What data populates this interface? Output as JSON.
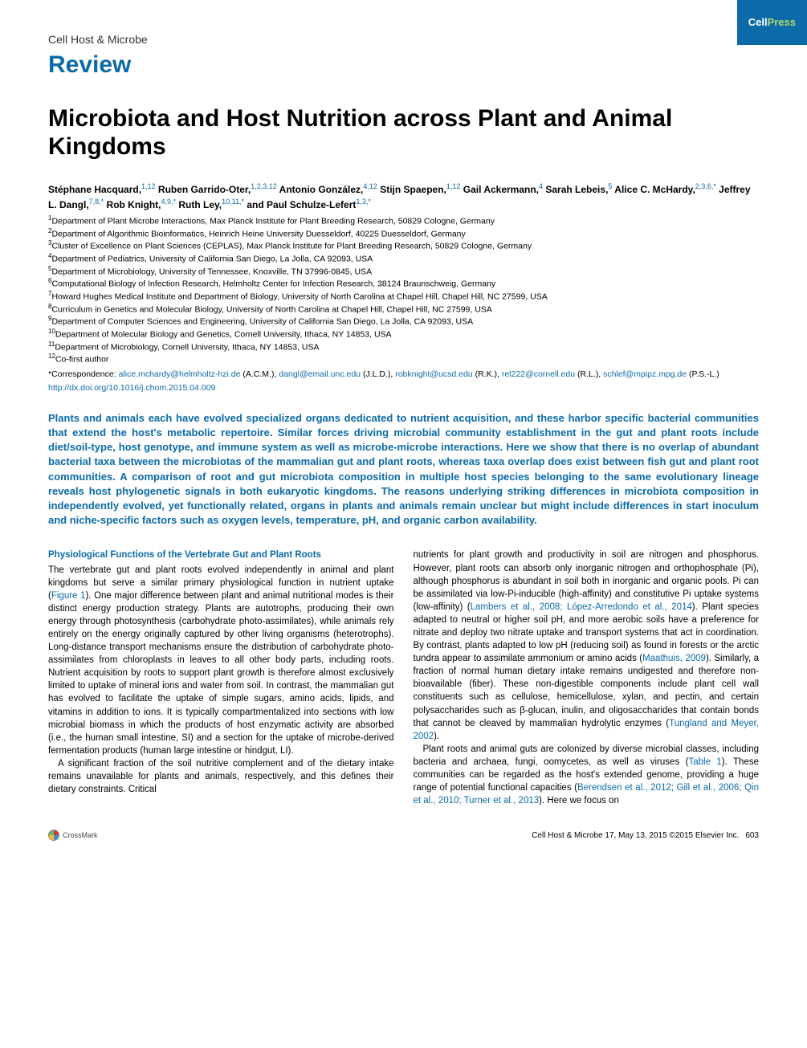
{
  "journal": {
    "name": "Cell Host & Microbe",
    "article_type": "Review",
    "publisher_badge_cell": "Cell",
    "publisher_badge_press": "Press"
  },
  "title": "Microbiota and Host Nutrition across Plant and Animal Kingdoms",
  "authors_html": "Stéphane Hacquard,<sup>1,12</sup> Ruben Garrido-Oter,<sup>1,2,3,12</sup> Antonio González,<sup>4,12</sup> Stijn Spaepen,<sup>1,12</sup> Gail Ackermann,<sup>4</sup> Sarah Lebeis,<sup>5</sup> Alice C. McHardy,<sup>2,3,6,*</sup> Jeffrey L. Dangl,<sup>7,8,*</sup> Rob Knight,<sup>4,9,*</sup> Ruth Ley,<sup>10,11,*</sup> and Paul Schulze-Lefert<sup>1,3,*</sup>",
  "affiliations": [
    "<sup>1</sup>Department of Plant Microbe Interactions, Max Planck Institute for Plant Breeding Research, 50829 Cologne, Germany",
    "<sup>2</sup>Department of Algorithmic Bioinformatics, Heinrich Heine University Duesseldorf, 40225 Duesseldorf, Germany",
    "<sup>3</sup>Cluster of Excellence on Plant Sciences (CEPLAS), Max Planck Institute for Plant Breeding Research, 50829 Cologne, Germany",
    "<sup>4</sup>Department of Pediatrics, University of California San Diego, La Jolla, CA 92093, USA",
    "<sup>5</sup>Department of Microbiology, University of Tennessee, Knoxville, TN 37996-0845, USA",
    "<sup>6</sup>Computational Biology of Infection Research, Helmholtz Center for Infection Research, 38124 Braunschweig, Germany",
    "<sup>7</sup>Howard Hughes Medical Institute and Department of Biology, University of North Carolina at Chapel Hill, Chapel Hill, NC 27599, USA",
    "<sup>8</sup>Curriculum in Genetics and Molecular Biology, University of North Carolina at Chapel Hill, Chapel Hill, NC 27599, USA",
    "<sup>9</sup>Department of Computer Sciences and Engineering, University of California San Diego, La Jolla, CA 92093, USA",
    "<sup>10</sup>Department of Molecular Biology and Genetics, Cornell University, Ithaca, NY 14853, USA",
    "<sup>11</sup>Department of Microbiology, Cornell University, Ithaca, NY 14853, USA",
    "<sup>12</sup>Co-first author"
  ],
  "correspondence_label": "*Correspondence: ",
  "correspondence_emails": [
    {
      "email": "alice.mchardy@helmholtz-hzi.de",
      "who": " (A.C.M.), "
    },
    {
      "email": "dangl@email.unc.edu",
      "who": " (J.L.D.), "
    },
    {
      "email": "robknight@ucsd.edu",
      "who": " (R.K.), "
    },
    {
      "email": "rel222@cornell.edu",
      "who": " (R.L.), "
    },
    {
      "email": "schlef@mpipz.mpg.de",
      "who": " (P.S.-L.)"
    }
  ],
  "doi": "http://dx.doi.org/10.1016/j.chom.2015.04.009",
  "abstract": "Plants and animals each have evolved specialized organs dedicated to nutrient acquisition, and these harbor specific bacterial communities that extend the host's metabolic repertoire. Similar forces driving microbial community establishment in the gut and plant roots include diet/soil-type, host genotype, and immune system as well as microbe-microbe interactions. Here we show that there is no overlap of abundant bacterial taxa between the microbiotas of the mammalian gut and plant roots, whereas taxa overlap does exist between fish gut and plant root communities. A comparison of root and gut microbiota composition in multiple host species belonging to the same evolutionary lineage reveals host phylogenetic signals in both eukaryotic kingdoms. The reasons underlying striking differences in microbiota composition in independently evolved, yet functionally related, organs in plants and animals remain unclear but might include differences in start inoculum and niche-specific factors such as oxygen levels, temperature, pH, and organic carbon availability.",
  "section_heading": "Physiological Functions of the Vertebrate Gut and Plant Roots",
  "col1_p1": "The vertebrate gut and plant roots evolved independently in animal and plant kingdoms but serve a similar primary physiological function in nutrient uptake (<span class='link'>Figure 1</span>). One major difference between plant and animal nutritional modes is their distinct energy production strategy. Plants are autotrophs, producing their own energy through photosynthesis (carbohydrate photo-assimilates), while animals rely entirely on the energy originally captured by other living organisms (heterotrophs). Long-distance transport mechanisms ensure the distribution of carbohydrate photo-assimilates from chloroplasts in leaves to all other body parts, including roots. Nutrient acquisition by roots to support plant growth is therefore almost exclusively limited to uptake of mineral ions and water from soil. In contrast, the mammalian gut has evolved to facilitate the uptake of simple sugars, amino acids, lipids, and vitamins in addition to ions. It is typically compartmentalized into sections with low microbial biomass in which the products of host enzymatic activity are absorbed (i.e., the human small intestine, SI) and a section for the uptake of microbe-derived fermentation products (human large intestine or hindgut, LI).",
  "col1_p2": "A significant fraction of the soil nutritive complement and of the dietary intake remains unavailable for plants and animals, respectively, and this defines their dietary constraints. Critical",
  "col2_p1": "nutrients for plant growth and productivity in soil are nitrogen and phosphorus. However, plant roots can absorb only inorganic nitrogen and orthophosphate (Pi), although phosphorus is abundant in soil both in inorganic and organic pools. Pi can be assimilated via low-Pi-inducible (high-affinity) and constitutive Pi uptake systems (low-affinity) (<span class='link'>Lambers et al., 2008; López-Arredondo et al., 2014</span>). Plant species adapted to neutral or higher soil pH, and more aerobic soils have a preference for nitrate and deploy two nitrate uptake and transport systems that act in coordination. By contrast, plants adapted to low pH (reducing soil) as found in forests or the arctic tundra appear to assimilate ammonium or amino acids (<span class='link'>Maathuis, 2009</span>). Similarly, a fraction of normal human dietary intake remains undigested and therefore non-bioavailable (fiber). These non-digestible components include plant cell wall constituents such as cellulose, hemicellulose, xylan, and pectin, and certain polysaccharides such as β-glucan, inulin, and oligosaccharides that contain bonds that cannot be cleaved by mammalian hydrolytic enzymes (<span class='link'>Tungland and Meyer, 2002</span>).",
  "col2_p2": "Plant roots and animal guts are colonized by diverse microbial classes, including bacteria and archaea, fungi, oomycetes, as well as viruses (<span class='link'>Table 1</span>). These communities can be regarded as the host's extended genome, providing a huge range of potential functional capacities (<span class='link'>Berendsen et al., 2012; Gill et al., 2006; Qin et al., 2010; Turner et al., 2013</span>). Here we focus on",
  "footer": {
    "crossmark": "CrossMark",
    "citation": "Cell Host & Microbe 17, May 13, 2015 ©2015 Elsevier Inc.",
    "page": "603"
  },
  "colors": {
    "brand_blue": "#0b6aa8",
    "green": "#b5d96a"
  }
}
